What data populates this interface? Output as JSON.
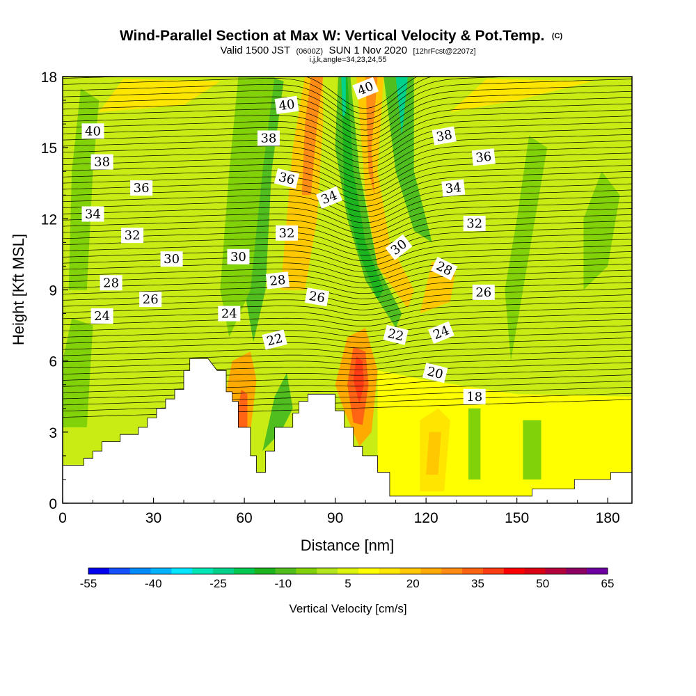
{
  "chart_data": {
    "type": "heatmap",
    "title": "Wind-Parallel Section at Max W: Vertical Velocity & Pot.Temp.",
    "title_units": "(C)",
    "subtitle": {
      "prefix": "Valid 1500 JST",
      "utc": "(0600Z)",
      "date": "SUN 1 Nov 2020",
      "forecast": "[12hrFcst@2207z]",
      "indices": "i,j,k,angle=34,23,24,55"
    },
    "xlabel": "Distance [nm]",
    "ylabel": "Height [Kft MSL]",
    "xlim": [
      0,
      188
    ],
    "ylim": [
      0,
      18
    ],
    "x_ticks": [
      0,
      30,
      60,
      90,
      120,
      150,
      180
    ],
    "y_ticks": [
      0,
      3,
      6,
      9,
      12,
      15,
      18
    ],
    "colorbar": {
      "label": "Vertical Velocity [cm/s]",
      "min": -55,
      "max": 65,
      "step": 5,
      "tick_labels": [
        -55,
        -40,
        -25,
        -10,
        5,
        20,
        35,
        50,
        65
      ],
      "colors": [
        "#0000f0",
        "#1450ff",
        "#008cff",
        "#00b4ff",
        "#00e6ff",
        "#00e6b4",
        "#00d28c",
        "#00c850",
        "#1eb41e",
        "#50be1e",
        "#82d20a",
        "#b4e61e",
        "#dcf50a",
        "#ffff00",
        "#ffe600",
        "#ffc800",
        "#ffaa00",
        "#ff8c14",
        "#ff6414",
        "#ff3c14",
        "#ff0000",
        "#dc0014",
        "#b4003c",
        "#8c0064",
        "#6e00a0"
      ]
    },
    "terrain": {
      "description": "terrain profile (distance nm, height kft)",
      "points": [
        [
          0,
          1.6
        ],
        [
          7,
          1.6
        ],
        [
          7,
          1.9
        ],
        [
          10,
          1.9
        ],
        [
          10,
          2.2
        ],
        [
          13,
          2.2
        ],
        [
          13,
          2.6
        ],
        [
          19,
          2.6
        ],
        [
          19,
          2.9
        ],
        [
          25,
          2.9
        ],
        [
          25,
          3.2
        ],
        [
          28,
          3.2
        ],
        [
          28,
          3.6
        ],
        [
          31,
          3.6
        ],
        [
          31,
          4.0
        ],
        [
          34,
          4.0
        ],
        [
          34,
          4.4
        ],
        [
          37,
          4.4
        ],
        [
          37,
          4.8
        ],
        [
          40,
          4.8
        ],
        [
          40,
          5.6
        ],
        [
          42,
          5.6
        ],
        [
          42,
          6.1
        ],
        [
          48,
          6.1
        ],
        [
          51,
          5.6
        ],
        [
          54,
          5.6
        ],
        [
          54,
          4.7
        ],
        [
          56,
          4.7
        ],
        [
          56,
          4.3
        ],
        [
          58,
          4.3
        ],
        [
          58,
          3.2
        ],
        [
          62,
          3.2
        ],
        [
          62,
          2.0
        ],
        [
          64,
          2.0
        ],
        [
          64,
          1.3
        ],
        [
          67,
          1.3
        ],
        [
          67,
          2.2
        ],
        [
          70,
          2.2
        ],
        [
          70,
          3.2
        ],
        [
          76,
          3.2
        ],
        [
          76,
          3.8
        ],
        [
          78,
          3.8
        ],
        [
          78,
          4.3
        ],
        [
          81,
          4.3
        ],
        [
          81,
          4.6
        ],
        [
          90,
          4.6
        ],
        [
          90,
          3.9
        ],
        [
          93,
          3.9
        ],
        [
          93,
          3.2
        ],
        [
          96,
          3.2
        ],
        [
          96,
          2.4
        ],
        [
          99,
          2.4
        ],
        [
          99,
          2.0
        ],
        [
          104,
          2.0
        ],
        [
          104,
          1.3
        ],
        [
          108,
          1.3
        ],
        [
          108,
          0.3
        ],
        [
          155,
          0.3
        ],
        [
          155,
          0.6
        ],
        [
          169,
          0.6
        ],
        [
          169,
          1.0
        ],
        [
          181,
          1.0
        ],
        [
          181,
          1.3
        ],
        [
          188,
          1.3
        ]
      ]
    },
    "pot_temp_contours": {
      "levels": [
        18,
        20,
        22,
        24,
        26,
        28,
        30,
        32,
        34,
        36,
        38,
        40
      ],
      "labels": [
        {
          "value": "40",
          "x": 10,
          "y": 15.7,
          "angle": 0
        },
        {
          "value": "38",
          "x": 13,
          "y": 14.4,
          "angle": 0
        },
        {
          "value": "36",
          "x": 26,
          "y": 13.3,
          "angle": 0
        },
        {
          "value": "34",
          "x": 10,
          "y": 12.2,
          "angle": 0
        },
        {
          "value": "32",
          "x": 23,
          "y": 11.3,
          "angle": 0
        },
        {
          "value": "30",
          "x": 36,
          "y": 10.3,
          "angle": 0
        },
        {
          "value": "28",
          "x": 16,
          "y": 9.3,
          "angle": 0
        },
        {
          "value": "26",
          "x": 29,
          "y": 8.6,
          "angle": 0
        },
        {
          "value": "24",
          "x": 13,
          "y": 7.9,
          "angle": 0
        },
        {
          "value": "40",
          "x": 74,
          "y": 16.8,
          "angle": -8
        },
        {
          "value": "38",
          "x": 68,
          "y": 15.4,
          "angle": 0
        },
        {
          "value": "36",
          "x": 74,
          "y": 13.7,
          "angle": 14
        },
        {
          "value": "34",
          "x": 88,
          "y": 12.9,
          "angle": -22
        },
        {
          "value": "32",
          "x": 74,
          "y": 11.4,
          "angle": 0
        },
        {
          "value": "30",
          "x": 58,
          "y": 10.4,
          "angle": 0
        },
        {
          "value": "28",
          "x": 71,
          "y": 9.4,
          "angle": -6
        },
        {
          "value": "26",
          "x": 84,
          "y": 8.7,
          "angle": 10
        },
        {
          "value": "24",
          "x": 55,
          "y": 8.0,
          "angle": 0
        },
        {
          "value": "22",
          "x": 70,
          "y": 6.9,
          "angle": -14
        },
        {
          "value": "40",
          "x": 100,
          "y": 17.5,
          "angle": -22
        },
        {
          "value": "38",
          "x": 126,
          "y": 15.5,
          "angle": -10
        },
        {
          "value": "36",
          "x": 139,
          "y": 14.6,
          "angle": -6
        },
        {
          "value": "34",
          "x": 129,
          "y": 13.3,
          "angle": -6
        },
        {
          "value": "32",
          "x": 136,
          "y": 11.8,
          "angle": 0
        },
        {
          "value": "30",
          "x": 111,
          "y": 10.8,
          "angle": -38
        },
        {
          "value": "28",
          "x": 126,
          "y": 9.9,
          "angle": 26
        },
        {
          "value": "26",
          "x": 139,
          "y": 8.9,
          "angle": 0
        },
        {
          "value": "24",
          "x": 125,
          "y": 7.2,
          "angle": -22
        },
        {
          "value": "22",
          "x": 110,
          "y": 7.1,
          "angle": 14
        },
        {
          "value": "20",
          "x": 123,
          "y": 5.5,
          "angle": 14
        },
        {
          "value": "18",
          "x": 136,
          "y": 4.5,
          "angle": 0
        }
      ]
    }
  }
}
